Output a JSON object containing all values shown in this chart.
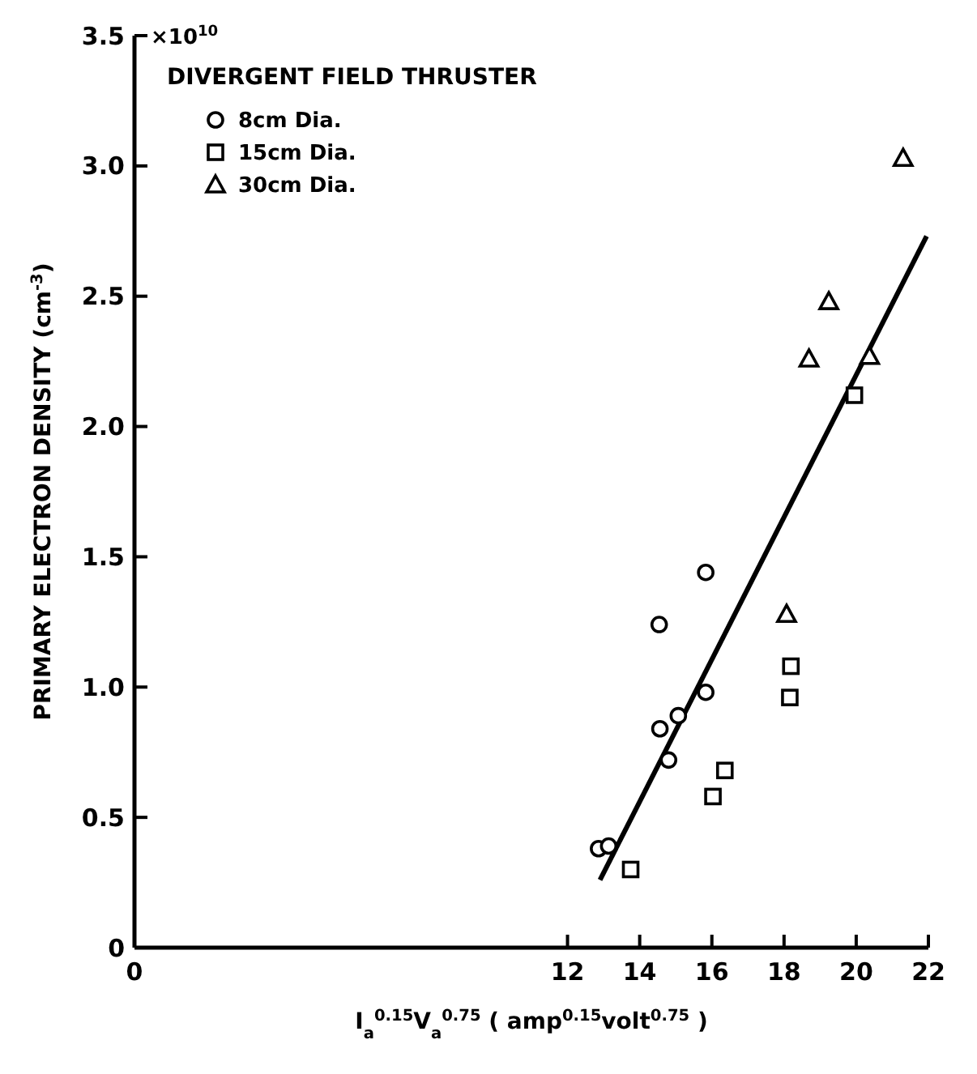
{
  "chart_data": {
    "type": "scatter",
    "xlabel": "I$_{a}$$^{0.15}$V$_{a}$$^{0.75}$ ( amp$^{0.15}$volt$^{0.75}$ )",
    "ylabel": "PRIMARY ELECTRON DENSITY  (cm$^{-3}$)",
    "legend_title": "DIVERGENT FIELD THRUSTER",
    "legend": "top left",
    "grid": false,
    "annotations": [
      "×10$^{10}$"
    ],
    "xlim": [
      0,
      22
    ],
    "xticks": [
      0,
      12,
      14,
      16,
      18,
      20,
      22
    ],
    "ylim": [
      0,
      3.5
    ],
    "yticks": [
      0,
      0.5,
      {
        "value": 1,
        "label": "1.0"
      },
      1.5,
      {
        "value": 2,
        "label": "2.0"
      },
      2.5,
      {
        "value": 3,
        "label": "3.0"
      },
      3.5
    ],
    "series": [
      {
        "name": "8cm Dia.",
        "color": "#000000",
        "marker": "circle",
        "x": [
          12.86,
          13.14,
          14.54,
          14.56,
          14.8,
          15.07,
          15.83,
          15.83
        ],
        "values": [
          0.38,
          0.39,
          1.24,
          0.84,
          0.72,
          0.89,
          1.44,
          0.98
        ]
      },
      {
        "name": "15cm Dia.",
        "color": "#000000",
        "marker": "square",
        "x": [
          13.75,
          16.03,
          16.36,
          18.16,
          18.19,
          19.95
        ],
        "values": [
          0.3,
          0.58,
          0.68,
          0.96,
          1.08,
          2.12
        ]
      },
      {
        "name": "30cm Dia.",
        "color": "#000000",
        "marker": "triangle",
        "x": [
          18.07,
          18.69,
          19.24,
          20.37,
          21.3
        ],
        "values": [
          1.28,
          2.26,
          2.48,
          2.27,
          3.03
        ]
      },
      {
        "type": "line",
        "color": "#000000",
        "marker": "none",
        "line_style": "solid",
        "x": [
          12.9,
          21.95
        ],
        "values": [
          0.26,
          2.73
        ]
      }
    ]
  }
}
